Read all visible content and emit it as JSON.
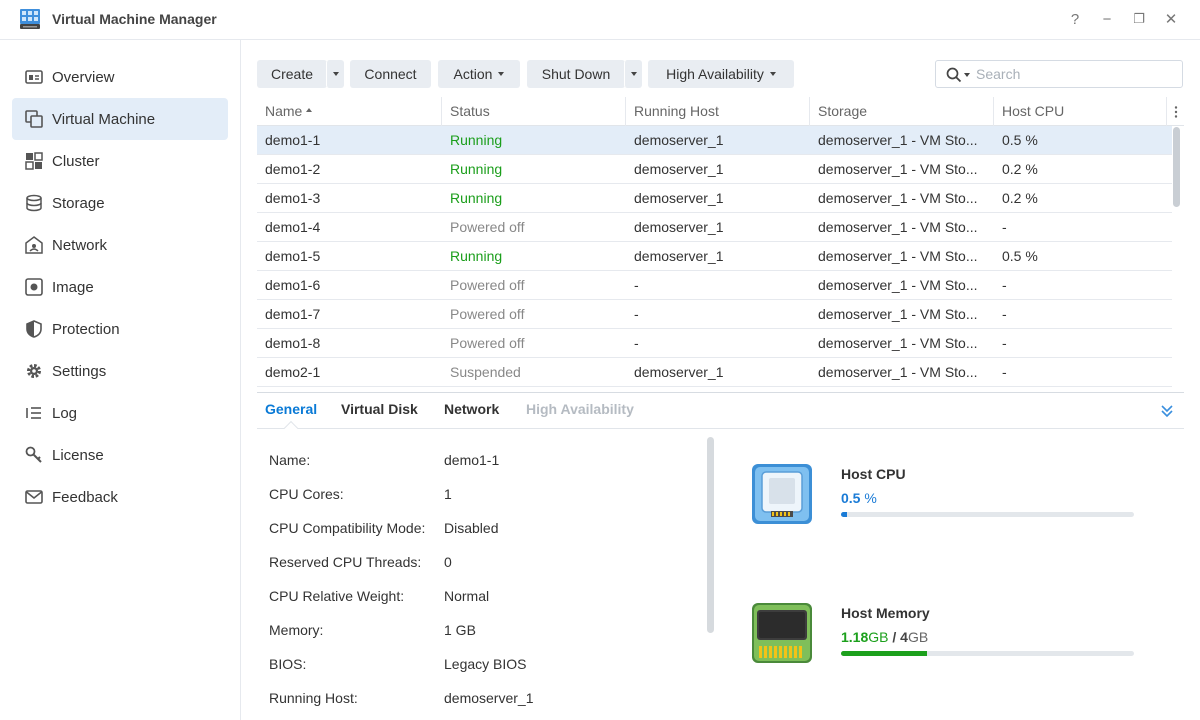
{
  "app": {
    "title": "Virtual Machine Manager"
  },
  "window": {
    "help": "?",
    "minimize": "−",
    "restore": "❐",
    "close": "✕"
  },
  "sidebar": {
    "items": [
      {
        "label": "Overview",
        "icon": "overview-icon",
        "active": false
      },
      {
        "label": "Virtual Machine",
        "icon": "virtual-machine-icon",
        "active": true
      },
      {
        "label": "Cluster",
        "icon": "cluster-icon",
        "active": false
      },
      {
        "label": "Storage",
        "icon": "storage-icon",
        "active": false
      },
      {
        "label": "Network",
        "icon": "network-icon",
        "active": false
      },
      {
        "label": "Image",
        "icon": "image-icon",
        "active": false
      },
      {
        "label": "Protection",
        "icon": "protection-icon",
        "active": false
      },
      {
        "label": "Settings",
        "icon": "settings-icon",
        "active": false
      },
      {
        "label": "Log",
        "icon": "log-icon",
        "active": false
      },
      {
        "label": "License",
        "icon": "license-icon",
        "active": false
      },
      {
        "label": "Feedback",
        "icon": "feedback-icon",
        "active": false
      }
    ]
  },
  "toolbar": {
    "create": "Create",
    "connect": "Connect",
    "action": "Action",
    "shutdown": "Shut Down",
    "ha": "High Availability"
  },
  "search": {
    "placeholder": "Search"
  },
  "table": {
    "columns": [
      "Name",
      "Status",
      "Running Host",
      "Storage",
      "Host CPU"
    ],
    "rows": [
      {
        "name": "demo1-1",
        "status": "Running",
        "host": "demoserver_1",
        "storage": "demoserver_1 - VM Sto...",
        "cpu": "0.5 %",
        "selected": true
      },
      {
        "name": "demo1-2",
        "status": "Running",
        "host": "demoserver_1",
        "storage": "demoserver_1 - VM Sto...",
        "cpu": "0.2 %"
      },
      {
        "name": "demo1-3",
        "status": "Running",
        "host": "demoserver_1",
        "storage": "demoserver_1 - VM Sto...",
        "cpu": "0.2 %"
      },
      {
        "name": "demo1-4",
        "status": "Powered off",
        "host": "demoserver_1",
        "storage": "demoserver_1 - VM Sto...",
        "cpu": "-"
      },
      {
        "name": "demo1-5",
        "status": "Running",
        "host": "demoserver_1",
        "storage": "demoserver_1 - VM Sto...",
        "cpu": "0.5 %"
      },
      {
        "name": "demo1-6",
        "status": "Powered off",
        "host": "-",
        "storage": "demoserver_1 - VM Sto...",
        "cpu": "-"
      },
      {
        "name": "demo1-7",
        "status": "Powered off",
        "host": "-",
        "storage": "demoserver_1 - VM Sto...",
        "cpu": "-"
      },
      {
        "name": "demo1-8",
        "status": "Powered off",
        "host": "-",
        "storage": "demoserver_1 - VM Sto...",
        "cpu": "-"
      },
      {
        "name": "demo2-1",
        "status": "Suspended",
        "host": "demoserver_1",
        "storage": "demoserver_1 - VM Sto...",
        "cpu": "-"
      }
    ]
  },
  "detail": {
    "tabs": [
      {
        "label": "General",
        "state": "active"
      },
      {
        "label": "Virtual Disk",
        "state": "normal"
      },
      {
        "label": "Network",
        "state": "normal"
      },
      {
        "label": "High Availability",
        "state": "disabled"
      }
    ],
    "props": [
      {
        "label": "Name:",
        "value": "demo1-1"
      },
      {
        "label": "CPU Cores:",
        "value": "1"
      },
      {
        "label": "CPU Compatibility Mode:",
        "value": "Disabled"
      },
      {
        "label": "Reserved CPU Threads:",
        "value": "0"
      },
      {
        "label": "CPU Relative Weight:",
        "value": "Normal"
      },
      {
        "label": "Memory:",
        "value": "1 GB"
      },
      {
        "label": "BIOS:",
        "value": "Legacy BIOS"
      },
      {
        "label": "Running Host:",
        "value": "demoserver_1"
      }
    ],
    "cpu": {
      "title": "Host CPU",
      "value": "0.5",
      "unit": "%",
      "fraction": 0.02,
      "color": "#1a7bd6"
    },
    "memory": {
      "title": "Host Memory",
      "used": "1.18",
      "used_unit": "GB",
      "sep": "/",
      "total": "4",
      "total_unit": "GB",
      "fraction": 0.295,
      "color": "#1ca01c"
    }
  },
  "colors": {
    "accent": "#0a7ad6",
    "running": "#1b9e1b",
    "selected_bg": "#e3edf8"
  }
}
